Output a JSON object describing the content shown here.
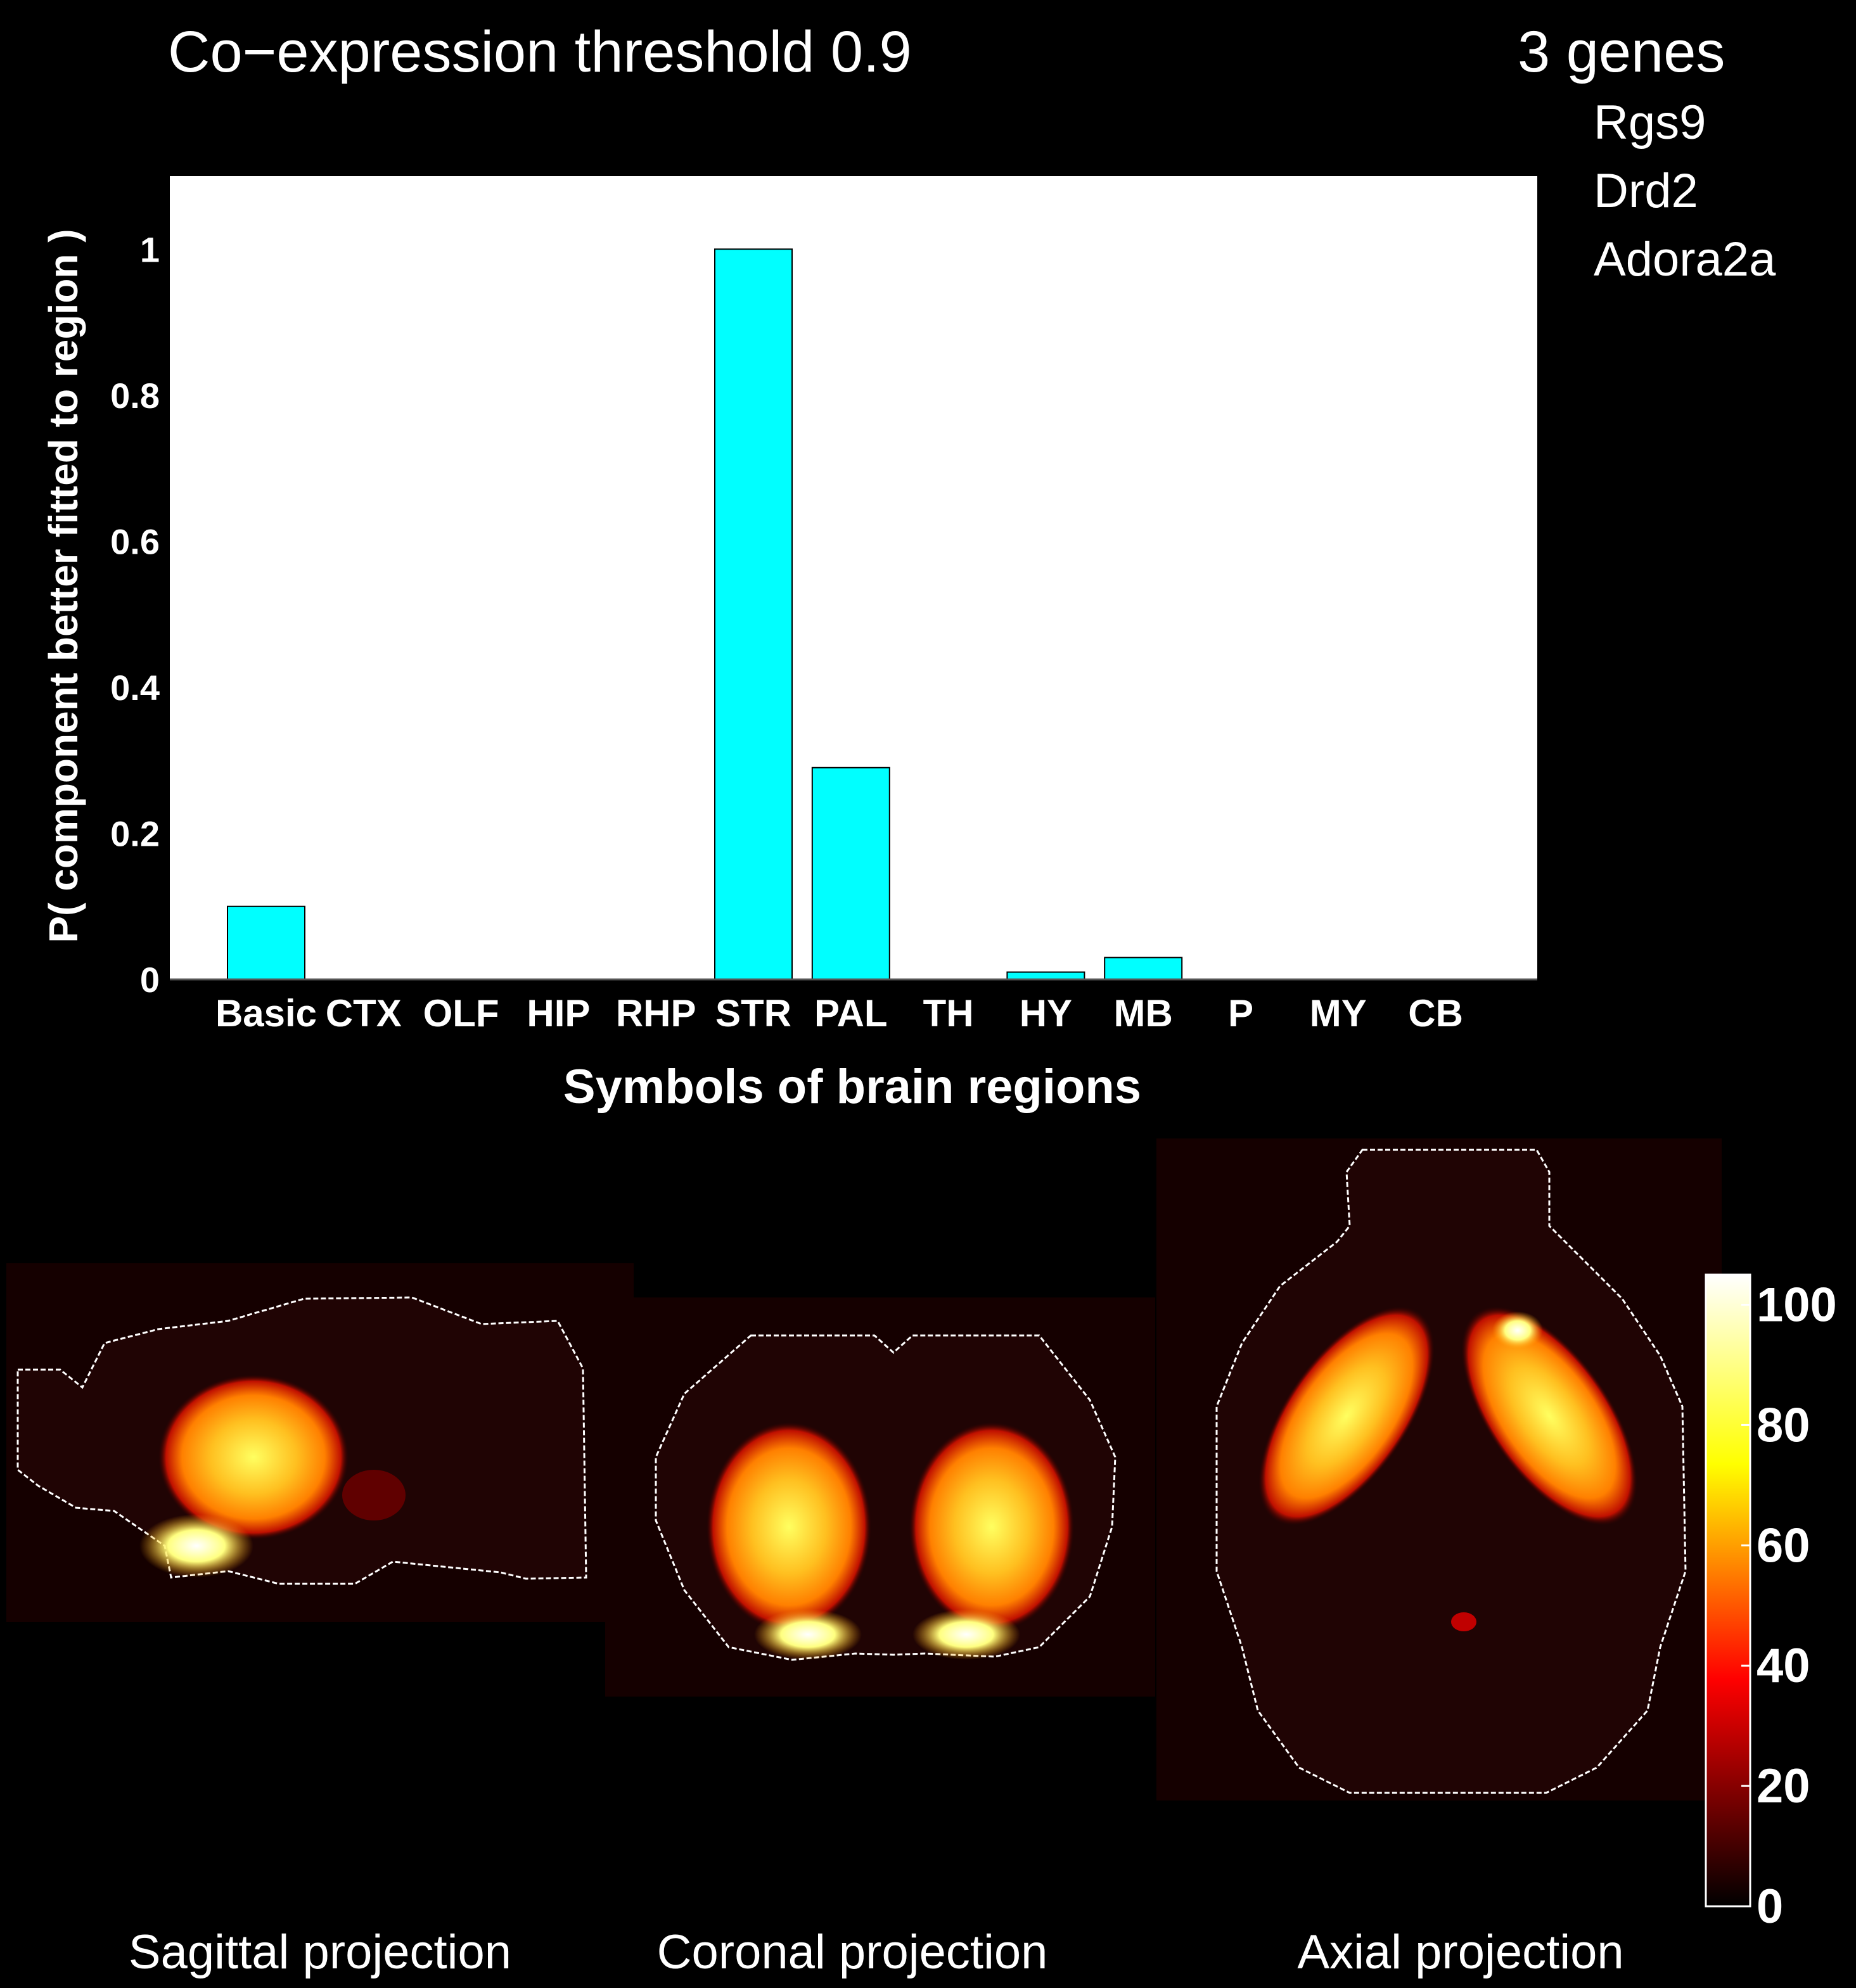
{
  "header": {
    "title": "Co−expression threshold 0.9",
    "genes_count": "3 genes",
    "genes": [
      "Rgs9",
      "Drd2",
      "Adora2a"
    ]
  },
  "chart_data": {
    "type": "bar",
    "title": "Co−expression threshold 0.9",
    "xlabel": "Symbols of brain regions",
    "ylabel": "P( component better fitted to region )",
    "categories": [
      "Basic",
      "CTX",
      "OLF",
      "HIP",
      "RHP",
      "STR",
      "PAL",
      "TH",
      "HY",
      "MB",
      "P",
      "MY",
      "CB"
    ],
    "values": [
      0.1,
      0,
      0,
      0,
      0,
      1.0,
      0.29,
      0,
      0.01,
      0.03,
      0,
      0,
      0
    ],
    "ylim": [
      0,
      1.1
    ],
    "yticks": [
      0,
      0.2,
      0.4,
      0.6,
      0.8,
      1
    ],
    "ytick_labels": [
      "0",
      "0.2",
      "0.4",
      "0.6",
      "0.8",
      "1"
    ],
    "bar_color": "#00ffff",
    "plot_background": "#ffffff",
    "grid": false
  },
  "projections": {
    "labels": [
      "Sagittal projection",
      "Coronal projection",
      "Axial projection"
    ],
    "colormap": "hot",
    "colorbar_ticks": [
      "0",
      "20",
      "40",
      "60",
      "80",
      "100"
    ],
    "colorbar_range": [
      0,
      105
    ]
  }
}
